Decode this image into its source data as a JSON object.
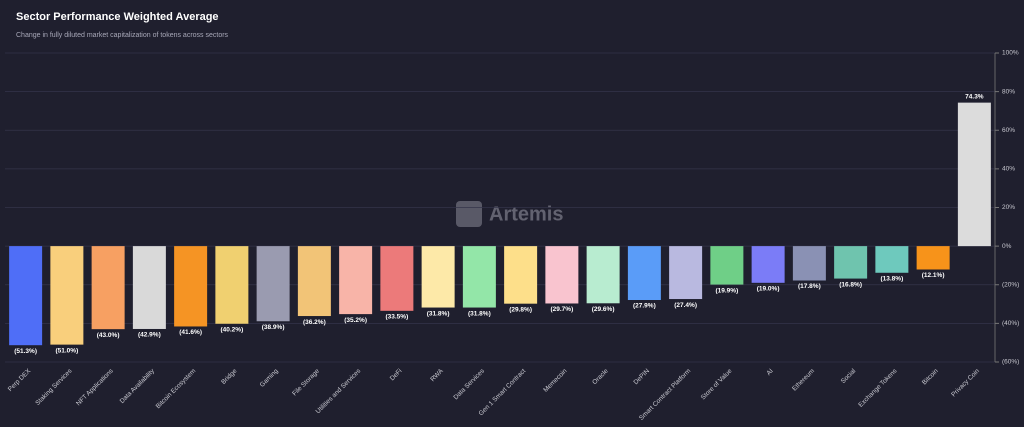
{
  "chart_data": {
    "type": "bar",
    "title": "Sector Performance Weighted Average",
    "subtitle": "Change in fully diluted market capitalization of tokens across sectors",
    "watermark": "Artemis",
    "categories": [
      "Perp DEX",
      "Staking Services",
      "NFT Applications",
      "Data Availability",
      "Bitcoin Ecosystem",
      "Bridge",
      "Gaming",
      "File Storage",
      "Utilities and Services",
      "DeFi",
      "RWA",
      "Data Services",
      "Gen 1 Smart Contract",
      "Memecoin",
      "Oracle",
      "DePIN",
      "Smart Contract Platform",
      "Store of Value",
      "AI",
      "Ethereum",
      "Social",
      "Exchange Tokens",
      "Bitcoin",
      "Privacy Coin"
    ],
    "values": [
      -51.3,
      -51.0,
      -43.0,
      -42.9,
      -41.6,
      -40.2,
      -38.9,
      -36.2,
      -35.2,
      -33.5,
      -31.8,
      -31.8,
      -29.8,
      -29.7,
      -29.6,
      -27.9,
      -27.4,
      -19.9,
      -19.0,
      -17.8,
      -16.8,
      -13.8,
      -12.1,
      74.3
    ],
    "value_labels": [
      "(51.3%)",
      "(51.0%)",
      "(43.0%)",
      "(42.9%)",
      "(41.6%)",
      "(40.2%)",
      "(38.9%)",
      "(36.2%)",
      "(35.2%)",
      "(33.5%)",
      "(31.8%)",
      "(31.8%)",
      "(29.8%)",
      "(29.7%)",
      "(29.6%)",
      "(27.9%)",
      "(27.4%)",
      "(19.9%)",
      "(19.0%)",
      "(17.8%)",
      "(16.8%)",
      "(13.8%)",
      "(12.1%)",
      "74.3%"
    ],
    "colors": [
      "#4f6ef7",
      "#f9cf7c",
      "#f7a062",
      "#d9d9d9",
      "#f59424",
      "#f0d070",
      "#9a9bb0",
      "#f2c477",
      "#f8b4a8",
      "#ec7a7a",
      "#fde9a8",
      "#93e6a8",
      "#fddf8a",
      "#f9c4cf",
      "#b8ecd0",
      "#5a9cf8",
      "#b9b9e0",
      "#6fcf87",
      "#7b7cf7",
      "#8a91b4",
      "#6fc4ae",
      "#6ec9bd",
      "#f7931a",
      "#dcdcdc"
    ],
    "ylim": [
      -60,
      100
    ],
    "yticks": [
      {
        "value": 100,
        "label": "100%"
      },
      {
        "value": 80,
        "label": "80%"
      },
      {
        "value": 60,
        "label": "60%"
      },
      {
        "value": 40,
        "label": "40%"
      },
      {
        "value": 20,
        "label": "20%"
      },
      {
        "value": 0,
        "label": "0%"
      },
      {
        "value": -20,
        "label": "(20%)"
      },
      {
        "value": -40,
        "label": "(40%)"
      },
      {
        "value": -60,
        "label": "(60%)"
      }
    ],
    "grid": true
  }
}
